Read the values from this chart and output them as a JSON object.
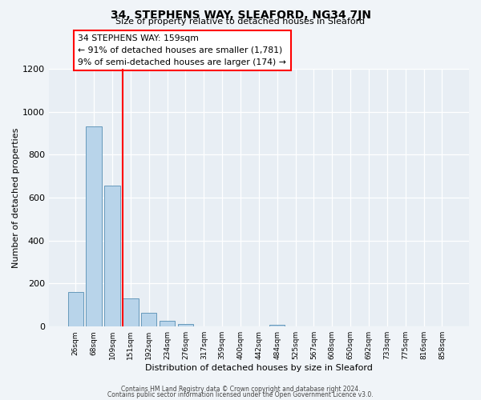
{
  "title": "34, STEPHENS WAY, SLEAFORD, NG34 7JN",
  "subtitle": "Size of property relative to detached houses in Sleaford",
  "xlabel": "Distribution of detached houses by size in Sleaford",
  "ylabel": "Number of detached properties",
  "bar_labels": [
    "26sqm",
    "68sqm",
    "109sqm",
    "151sqm",
    "192sqm",
    "234sqm",
    "276sqm",
    "317sqm",
    "359sqm",
    "400sqm",
    "442sqm",
    "484sqm",
    "525sqm",
    "567sqm",
    "608sqm",
    "650sqm",
    "692sqm",
    "733sqm",
    "775sqm",
    "816sqm",
    "858sqm"
  ],
  "bar_values": [
    160,
    930,
    655,
    130,
    63,
    28,
    13,
    0,
    0,
    0,
    0,
    10,
    0,
    0,
    0,
    0,
    0,
    0,
    0,
    0,
    0
  ],
  "bar_color": "#b8d4ea",
  "bar_edge_color": "#6699bb",
  "property_line_color": "red",
  "annotation_title": "34 STEPHENS WAY: 159sqm",
  "annotation_line1": "← 91% of detached houses are smaller (1,781)",
  "annotation_line2": "9% of semi-detached houses are larger (174) →",
  "annotation_box_color": "white",
  "annotation_box_edge_color": "red",
  "ylim": [
    0,
    1200
  ],
  "yticks": [
    0,
    200,
    400,
    600,
    800,
    1000,
    1200
  ],
  "footer1": "Contains HM Land Registry data © Crown copyright and database right 2024.",
  "footer2": "Contains public sector information licensed under the Open Government Licence v3.0.",
  "bg_color": "#f0f4f8",
  "plot_bg_color": "#e8eef4"
}
